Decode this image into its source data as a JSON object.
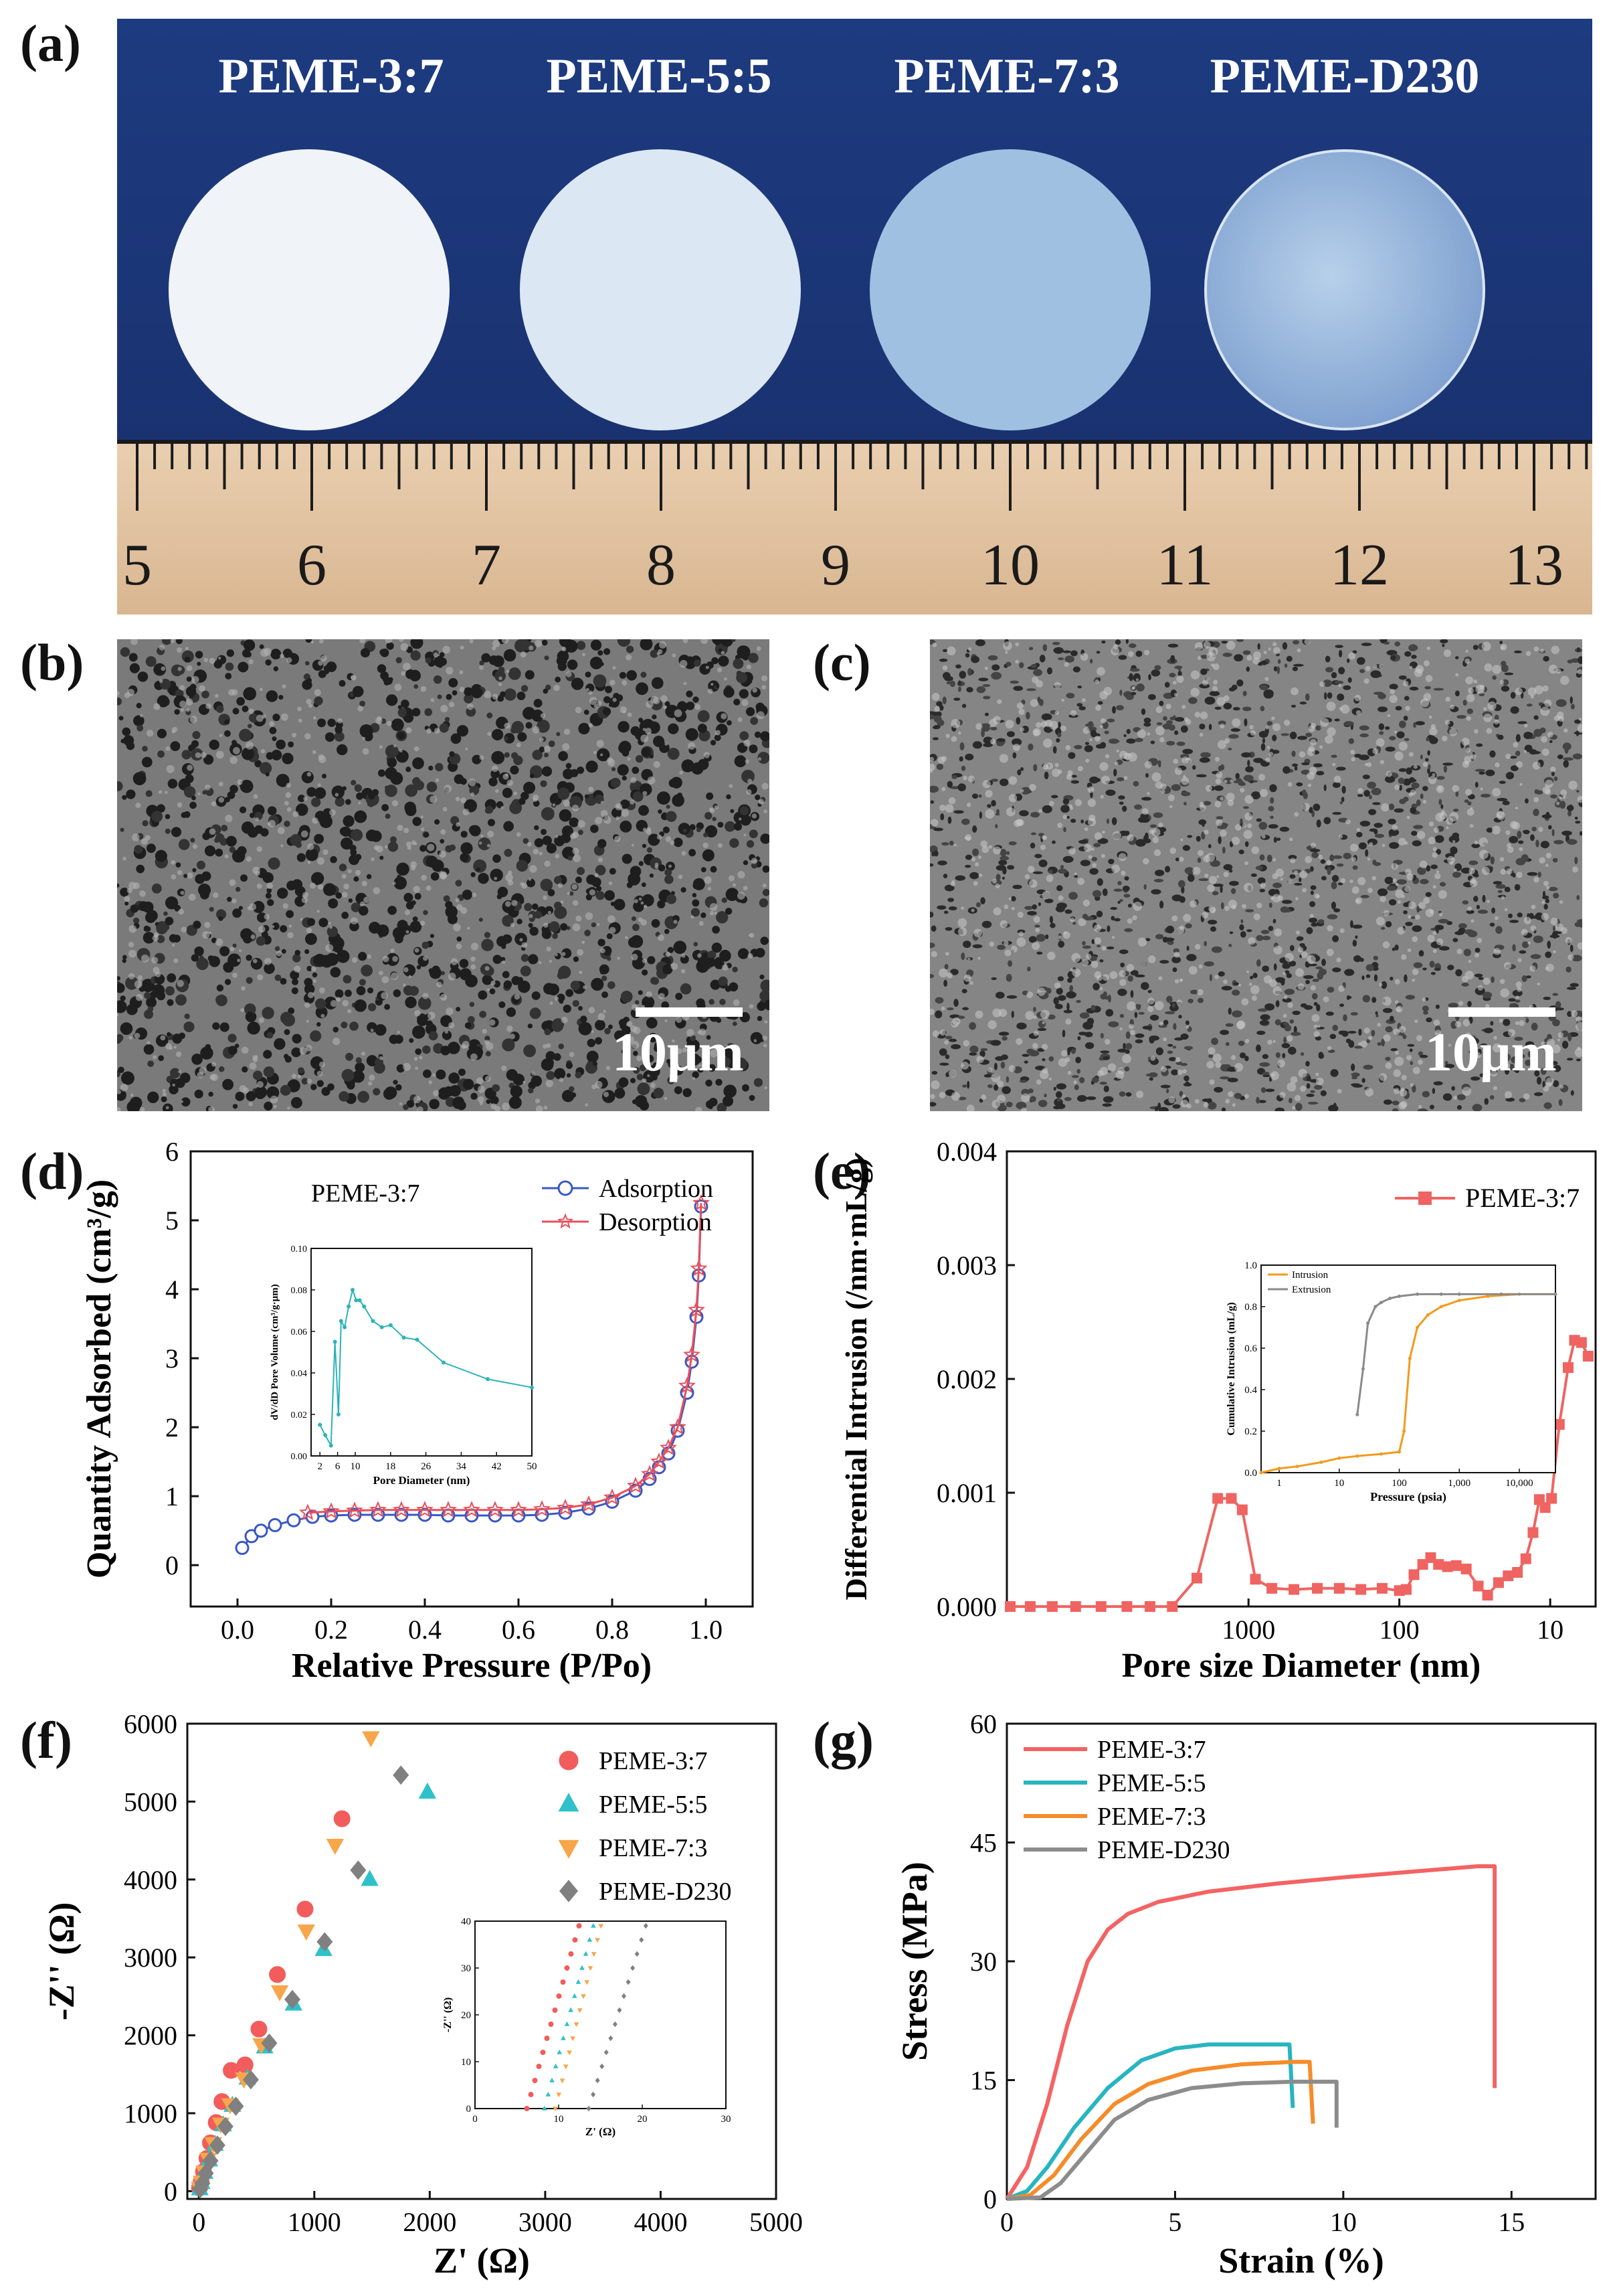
{
  "panel_labels": {
    "a": "(a)",
    "b": "(b)",
    "c": "(c)",
    "d": "(d)",
    "e": "(e)",
    "f": "(f)",
    "g": "(g)"
  },
  "photo": {
    "sample_labels": [
      "PEME-3:7",
      "PEME-5:5",
      "PEME-7:3",
      "PEME-D230"
    ],
    "ruler_numbers": [
      "5",
      "6",
      "7",
      "8",
      "9",
      "10",
      "11",
      "12",
      "13"
    ],
    "background_color": "#1b3779",
    "disc_colors": [
      "#eef3f7",
      "#dbe8f4",
      "#9fbfe0",
      "#a9c4e2"
    ]
  },
  "sem": {
    "b_scale": "10μm",
    "c_scale": "10μm"
  },
  "chart_data": [
    {
      "id": "d",
      "type": "line",
      "title": "PEME-3:7",
      "xlabel": "Relative Pressure (P/Po)",
      "ylabel": "Quantity Adsorbed (cm³/g)",
      "xlim": [
        -0.1,
        1.1
      ],
      "ylim": [
        -0.6,
        6
      ],
      "xticks": [
        "0.0",
        "0.2",
        "0.4",
        "0.6",
        "0.8",
        "1.0"
      ],
      "yticks": [
        "0",
        "1",
        "2",
        "3",
        "4",
        "5",
        "6"
      ],
      "series": [
        {
          "name": "Adsorption",
          "color": "#3a57c4",
          "marker": "circle",
          "x": [
            0.01,
            0.03,
            0.05,
            0.08,
            0.12,
            0.16,
            0.2,
            0.25,
            0.3,
            0.35,
            0.4,
            0.45,
            0.5,
            0.55,
            0.6,
            0.65,
            0.7,
            0.75,
            0.8,
            0.85,
            0.88,
            0.9,
            0.92,
            0.94,
            0.96,
            0.97,
            0.98,
            0.985,
            0.99
          ],
          "y": [
            0.25,
            0.42,
            0.5,
            0.58,
            0.65,
            0.7,
            0.72,
            0.73,
            0.73,
            0.73,
            0.73,
            0.72,
            0.72,
            0.72,
            0.72,
            0.73,
            0.76,
            0.82,
            0.92,
            1.08,
            1.25,
            1.42,
            1.62,
            1.95,
            2.5,
            2.95,
            3.6,
            4.2,
            5.2
          ]
        },
        {
          "name": "Desorption",
          "color": "#e8505b",
          "marker": "star",
          "x": [
            0.99,
            0.985,
            0.98,
            0.97,
            0.96,
            0.94,
            0.92,
            0.9,
            0.88,
            0.85,
            0.8,
            0.75,
            0.7,
            0.65,
            0.6,
            0.55,
            0.5,
            0.45,
            0.4,
            0.35,
            0.3,
            0.25,
            0.2,
            0.15
          ],
          "y": [
            5.25,
            4.3,
            3.7,
            3.05,
            2.6,
            2.0,
            1.7,
            1.5,
            1.32,
            1.15,
            0.98,
            0.88,
            0.83,
            0.81,
            0.8,
            0.8,
            0.8,
            0.8,
            0.8,
            0.8,
            0.8,
            0.79,
            0.78,
            0.76
          ]
        }
      ],
      "inset": {
        "type": "line",
        "xlabel": "Pore Diameter (nm)",
        "ylabel": "dV/dD Pore Volume (cm³/g·μm)",
        "xticks": [
          "2",
          "6",
          "10",
          "18",
          "26",
          "34",
          "42",
          "50"
        ],
        "yticks": [
          "0.00",
          "0.02",
          "0.04",
          "0.06",
          "0.08",
          "0.10"
        ],
        "color": "#2cb3b8",
        "x": [
          2,
          3.2,
          4.5,
          5.4,
          6.2,
          6.8,
          7.6,
          8.5,
          9.4,
          10.2,
          11,
          12,
          14,
          16,
          18,
          21,
          24,
          30,
          40,
          50
        ],
        "y": [
          0.015,
          0.01,
          0.005,
          0.055,
          0.02,
          0.065,
          0.062,
          0.072,
          0.08,
          0.075,
          0.075,
          0.072,
          0.065,
          0.062,
          0.063,
          0.057,
          0.056,
          0.045,
          0.037,
          0.033
        ]
      }
    },
    {
      "id": "e",
      "type": "line",
      "legend": "PEME-3:7",
      "xlabel": "Pore size Diameter (nm)",
      "ylabel": "Differential Intrusion (/nm·mL/g)",
      "xlim": [
        40000,
        5
      ],
      "xscale": "log",
      "ylim": [
        0,
        0.004
      ],
      "xticks": [
        "1000",
        "100",
        "10"
      ],
      "yticks": [
        "0.000",
        "0.001",
        "0.002",
        "0.003",
        "0.004"
      ],
      "series": [
        {
          "name": "PEME-3:7",
          "color": "#ef6461",
          "marker": "square",
          "x": [
            38000,
            28000,
            20000,
            14000,
            9500,
            6400,
            4500,
            3200,
            2200,
            1600,
            1300,
            1100,
            900,
            700,
            500,
            350,
            250,
            180,
            130,
            100,
            90,
            80,
            70,
            62,
            55,
            48,
            42,
            36,
            30,
            26,
            22,
            19,
            16.5,
            14.5,
            13,
            11.8,
            10.8,
            9.8,
            8.7,
            7.6,
            6.9,
            6.2,
            5.6
          ],
          "y": [
            0.0,
            0.0,
            0.0,
            0.0,
            0.0,
            0.0,
            0.0,
            0.0,
            0.00025,
            0.00095,
            0.00095,
            0.00085,
            0.00024,
            0.00016,
            0.00015,
            0.00016,
            0.00016,
            0.00015,
            0.00016,
            0.00014,
            0.00015,
            0.00028,
            0.00037,
            0.00043,
            0.00037,
            0.00035,
            0.00036,
            0.00033,
            0.00018,
            0.0001,
            0.00021,
            0.00027,
            0.0003,
            0.00042,
            0.00065,
            0.00094,
            0.00087,
            0.00095,
            0.0016,
            0.0021,
            0.00234,
            0.00232,
            0.0022
          ]
        }
      ],
      "inset": {
        "type": "line",
        "xlabel": "Pressure (psia)",
        "ylabel": "Cumulative Intrusion (mL/g)",
        "xscale": "log",
        "xticks": [
          "1",
          "10",
          "100",
          "1,000",
          "10,000"
        ],
        "yticks": [
          "0.0",
          "0.2",
          "0.4",
          "0.6",
          "0.8",
          "1.0"
        ],
        "series": [
          {
            "name": "Intrusion",
            "color": "#f39a1e",
            "x": [
              0.5,
              1,
              2,
              5,
              10,
              20,
              50,
              100,
              120,
              150,
              200,
              300,
              500,
              1000,
              3000,
              10000,
              40000
            ],
            "y": [
              0.0,
              0.02,
              0.03,
              0.05,
              0.07,
              0.08,
              0.09,
              0.1,
              0.2,
              0.55,
              0.7,
              0.76,
              0.8,
              0.83,
              0.85,
              0.86,
              0.86
            ]
          },
          {
            "name": "Extrusion",
            "color": "#8a8a8a",
            "x": [
              20,
              25,
              30,
              40,
              50,
              70,
              100,
              200,
              500,
              1000,
              5000,
              40000
            ],
            "y": [
              0.28,
              0.5,
              0.72,
              0.8,
              0.82,
              0.84,
              0.85,
              0.86,
              0.86,
              0.86,
              0.86,
              0.86
            ]
          }
        ]
      }
    },
    {
      "id": "f",
      "type": "scatter",
      "xlabel": "Z' (Ω)",
      "ylabel": "-Z'' (Ω)",
      "xlim": [
        -100,
        5000
      ],
      "ylim": [
        -100,
        6000
      ],
      "xticks": [
        "0",
        "1000",
        "2000",
        "3000",
        "4000",
        "5000"
      ],
      "yticks": [
        "0",
        "1000",
        "2000",
        "3000",
        "4000",
        "5000",
        "6000"
      ],
      "series": [
        {
          "name": "PEME-3:7",
          "color": "#f25c5c",
          "marker": "circle",
          "x": [
            5,
            20,
            40,
            70,
            100,
            150,
            200,
            280,
            400,
            520,
            680,
            920,
            1240
          ],
          "y": [
            40,
            120,
            250,
            420,
            620,
            880,
            1150,
            1550,
            1620,
            2080,
            2780,
            3620,
            4780
          ]
        },
        {
          "name": "PEME-5:5",
          "color": "#2fc1c9",
          "marker": "triangle-up",
          "x": [
            8,
            25,
            50,
            90,
            140,
            210,
            290,
            420,
            570,
            820,
            1080,
            1480,
            1980
          ],
          "y": [
            30,
            110,
            240,
            400,
            600,
            850,
            1100,
            1450,
            1850,
            2400,
            3100,
            4000,
            5120
          ]
        },
        {
          "name": "PEME-7:3",
          "color": "#f7a64a",
          "marker": "triangle-down",
          "x": [
            6,
            22,
            45,
            80,
            125,
            190,
            270,
            390,
            540,
            700,
            930,
            1180,
            1490
          ],
          "y": [
            35,
            115,
            245,
            410,
            610,
            860,
            1110,
            1440,
            1880,
            2560,
            3340,
            4440,
            5820
          ]
        },
        {
          "name": "PEME-D230",
          "color": "#808080",
          "marker": "diamond",
          "x": [
            10,
            30,
            60,
            100,
            160,
            230,
            320,
            450,
            610,
            810,
            1090,
            1380,
            1750
          ],
          "y": [
            30,
            100,
            230,
            390,
            590,
            830,
            1090,
            1430,
            1900,
            2460,
            3200,
            4120,
            5340
          ]
        }
      ],
      "inset": {
        "xlabel": "Z' (Ω)",
        "ylabel": "-Z'' (Ω)",
        "xlim": [
          0,
          30
        ],
        "ylim": [
          0,
          40
        ],
        "xticks": [
          "0",
          "10",
          "20",
          "30"
        ],
        "yticks": [
          "0",
          "10",
          "20",
          "30",
          "40"
        ]
      }
    },
    {
      "id": "g",
      "type": "line",
      "xlabel": "Strain (%)",
      "ylabel": "Stress (MPa)",
      "xlim": [
        0,
        17.5
      ],
      "ylim": [
        0,
        60
      ],
      "xticks": [
        "0",
        "5",
        "10",
        "15"
      ],
      "yticks": [
        "0",
        "15",
        "30",
        "45",
        "60"
      ],
      "series": [
        {
          "name": "PEME-3:7",
          "color": "#f46363",
          "x": [
            0,
            0.6,
            1.2,
            1.8,
            2.4,
            3.0,
            3.6,
            4.5,
            6,
            8,
            10,
            12,
            14,
            14.5,
            14.5
          ],
          "y": [
            0,
            4,
            12,
            22,
            30,
            34,
            36,
            37.5,
            38.8,
            39.8,
            40.6,
            41.3,
            42,
            42,
            14
          ]
        },
        {
          "name": "PEME-5:5",
          "color": "#27b5c1",
          "x": [
            0,
            0.6,
            1.2,
            2,
            3,
            4,
            5,
            6,
            7,
            8,
            8.4,
            8.5
          ],
          "y": [
            0,
            1,
            4,
            9,
            14,
            17.5,
            19,
            19.5,
            19.5,
            19.5,
            19.5,
            11.5
          ]
        },
        {
          "name": "PEME-7:3",
          "color": "#f58c2a",
          "x": [
            0,
            0.7,
            1.4,
            2.2,
            3.2,
            4.2,
            5.5,
            7,
            8.5,
            9,
            9.1
          ],
          "y": [
            0,
            0.5,
            3,
            7.5,
            12,
            14.5,
            16.2,
            17,
            17.3,
            17.3,
            9.5
          ]
        },
        {
          "name": "PEME-D230",
          "color": "#8c8c8c",
          "x": [
            0,
            1,
            1.6,
            2.4,
            3.2,
            4.2,
            5.5,
            7,
            8.5,
            9.8,
            9.8
          ],
          "y": [
            0,
            0.2,
            2,
            6,
            10,
            12.5,
            14,
            14.6,
            14.8,
            14.8,
            9
          ]
        }
      ]
    }
  ]
}
